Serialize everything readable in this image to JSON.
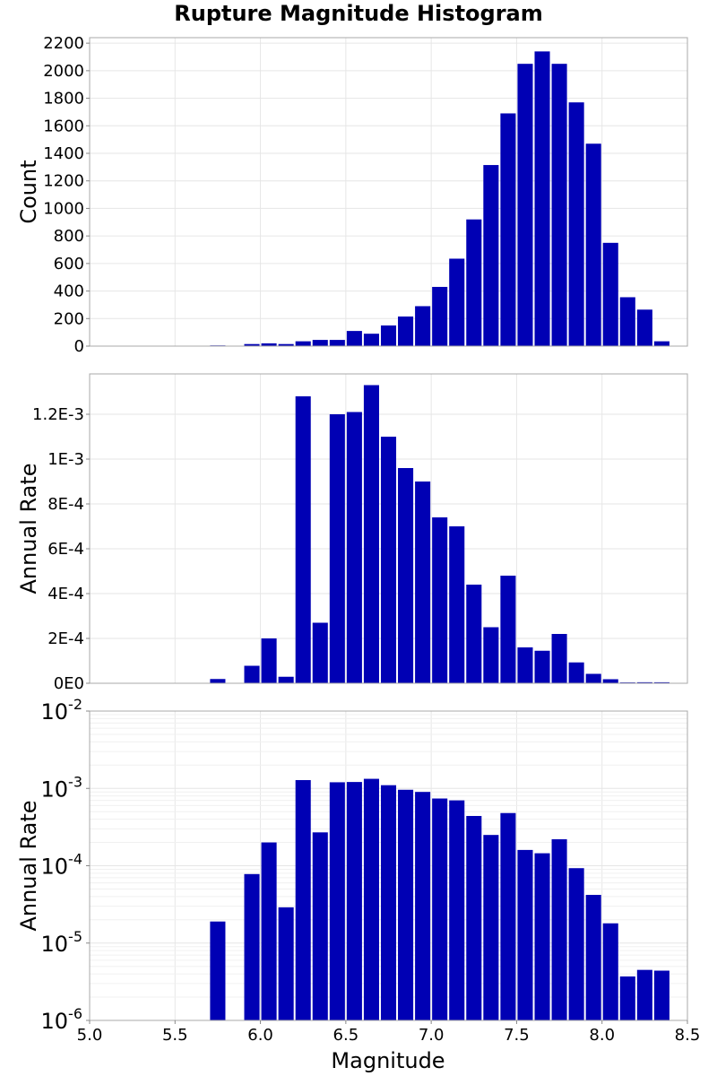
{
  "chart_data": {
    "title": "Rupture Magnitude Histogram",
    "type": "bar",
    "xlabel": "Magnitude",
    "xlim": [
      5.0,
      8.5
    ],
    "xticks": [
      "5.0",
      "5.5",
      "6.0",
      "6.5",
      "7.0",
      "7.5",
      "8.0",
      "8.5"
    ],
    "x": [
      5.75,
      5.85,
      5.95,
      6.05,
      6.15,
      6.25,
      6.35,
      6.45,
      6.55,
      6.65,
      6.75,
      6.85,
      6.95,
      7.05,
      7.15,
      7.25,
      7.35,
      7.45,
      7.55,
      7.65,
      7.75,
      7.85,
      7.95,
      8.05,
      8.15,
      8.25,
      8.35
    ],
    "bar_color": "#0000b4",
    "grid": true,
    "panels": [
      {
        "ylabel": "Count",
        "scale": "linear",
        "ylim": [
          0,
          2240
        ],
        "yticks": [
          0,
          200,
          400,
          600,
          800,
          1000,
          1200,
          1400,
          1600,
          1800,
          2000,
          2200
        ],
        "ytick_labels": [
          "0",
          "200",
          "400",
          "600",
          "800",
          "1000",
          "1200",
          "1400",
          "1600",
          "1800",
          "2000",
          "2200"
        ],
        "values": [
          5,
          0,
          15,
          20,
          15,
          35,
          45,
          45,
          110,
          90,
          150,
          215,
          290,
          430,
          635,
          920,
          1315,
          1690,
          2050,
          2140,
          2050,
          1770,
          1470,
          750,
          355,
          265,
          35
        ]
      },
      {
        "ylabel": "Annual Rate",
        "scale": "linear",
        "ylim": [
          0,
          0.00138
        ],
        "yticks": [
          0,
          0.0002,
          0.0004,
          0.0006,
          0.0008,
          0.001,
          0.0012
        ],
        "ytick_labels": [
          "0E0",
          "2E-4",
          "4E-4",
          "6E-4",
          "8E-4",
          "1E-3",
          "1.2E-3"
        ],
        "values": [
          1.9e-05,
          0,
          7.8e-05,
          0.0002,
          2.9e-05,
          0.00128,
          0.00027,
          0.0012,
          0.00121,
          0.00133,
          0.0011,
          0.00096,
          0.0009,
          0.00074,
          0.0007,
          0.00044,
          0.00025,
          0.00048,
          0.00016,
          0.000145,
          0.00022,
          9.3e-05,
          4.2e-05,
          1.8e-05,
          3.7e-06,
          4.5e-06,
          4.4e-06
        ]
      },
      {
        "ylabel": "Annual Rate",
        "scale": "log",
        "ylim": [
          1e-06,
          0.01
        ],
        "yticks": [
          1e-06,
          1e-05,
          0.0001,
          0.001,
          0.01
        ],
        "ytick_labels": [
          {
            "base": "10",
            "exp": "-6"
          },
          {
            "base": "10",
            "exp": "-5"
          },
          {
            "base": "10",
            "exp": "-4"
          },
          {
            "base": "10",
            "exp": "-3"
          },
          {
            "base": "10",
            "exp": "-2"
          }
        ],
        "values": [
          1.9e-05,
          0,
          7.8e-05,
          0.0002,
          2.9e-05,
          0.00128,
          0.00027,
          0.0012,
          0.00121,
          0.00133,
          0.0011,
          0.00096,
          0.0009,
          0.00074,
          0.0007,
          0.00044,
          0.00025,
          0.00048,
          0.00016,
          0.000145,
          0.00022,
          9.3e-05,
          4.2e-05,
          1.8e-05,
          3.7e-06,
          4.5e-06,
          4.4e-06
        ]
      }
    ]
  }
}
